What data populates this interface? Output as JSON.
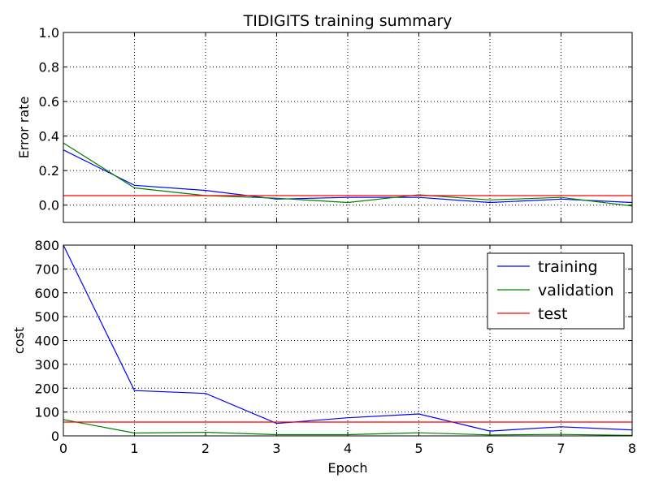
{
  "chart_data": [
    {
      "type": "line",
      "title": "TIDIGITS training summary",
      "xlabel": "",
      "ylabel": "Error rate",
      "xlim": [
        0,
        8
      ],
      "ylim": [
        -0.1,
        1.0
      ],
      "x_ticks": [
        "0",
        "1",
        "2",
        "3",
        "4",
        "5",
        "6",
        "7",
        "8"
      ],
      "y_ticks": [
        "0.0",
        "0.2",
        "0.4",
        "0.6",
        "0.8",
        "1.0"
      ],
      "y_tick_values": [
        0.0,
        0.2,
        0.4,
        0.6,
        0.8,
        1.0
      ],
      "grid": true,
      "x": [
        0,
        1,
        2,
        3,
        4,
        5,
        6,
        7,
        8
      ],
      "series": [
        {
          "name": "training",
          "color": "#0000ff",
          "values": [
            0.32,
            0.115,
            0.085,
            0.035,
            0.045,
            0.045,
            0.015,
            0.035,
            0.015
          ]
        },
        {
          "name": "validation",
          "color": "#008000",
          "values": [
            0.36,
            0.1,
            0.055,
            0.04,
            0.015,
            0.06,
            0.03,
            0.045,
            -0.005
          ]
        },
        {
          "name": "test",
          "color": "#ff0000",
          "values": [
            0.055,
            0.055,
            0.055,
            0.055,
            0.055,
            0.055,
            0.055,
            0.055,
            0.055
          ]
        }
      ]
    },
    {
      "type": "line",
      "title": "",
      "xlabel": "Epoch",
      "ylabel": "cost",
      "xlim": [
        0,
        8
      ],
      "ylim": [
        0,
        800
      ],
      "x_ticks": [
        "0",
        "1",
        "2",
        "3",
        "4",
        "5",
        "6",
        "7",
        "8"
      ],
      "y_ticks": [
        "0",
        "100",
        "200",
        "300",
        "400",
        "500",
        "600",
        "700",
        "800"
      ],
      "y_tick_values": [
        0,
        100,
        200,
        300,
        400,
        500,
        600,
        700,
        800
      ],
      "grid": true,
      "legend_placement": "top-right",
      "x": [
        0,
        1,
        2,
        3,
        4,
        5,
        6,
        7,
        8
      ],
      "series": [
        {
          "name": "training",
          "color": "#0000ff",
          "values": [
            800,
            190,
            178,
            52,
            76,
            92,
            20,
            38,
            25
          ]
        },
        {
          "name": "validation",
          "color": "#008000",
          "values": [
            68,
            12,
            15,
            5,
            5,
            13,
            4,
            6,
            2
          ]
        },
        {
          "name": "test",
          "color": "#ff0000",
          "values": [
            58,
            58,
            58,
            58,
            58,
            58,
            58,
            58,
            58
          ]
        }
      ]
    }
  ]
}
